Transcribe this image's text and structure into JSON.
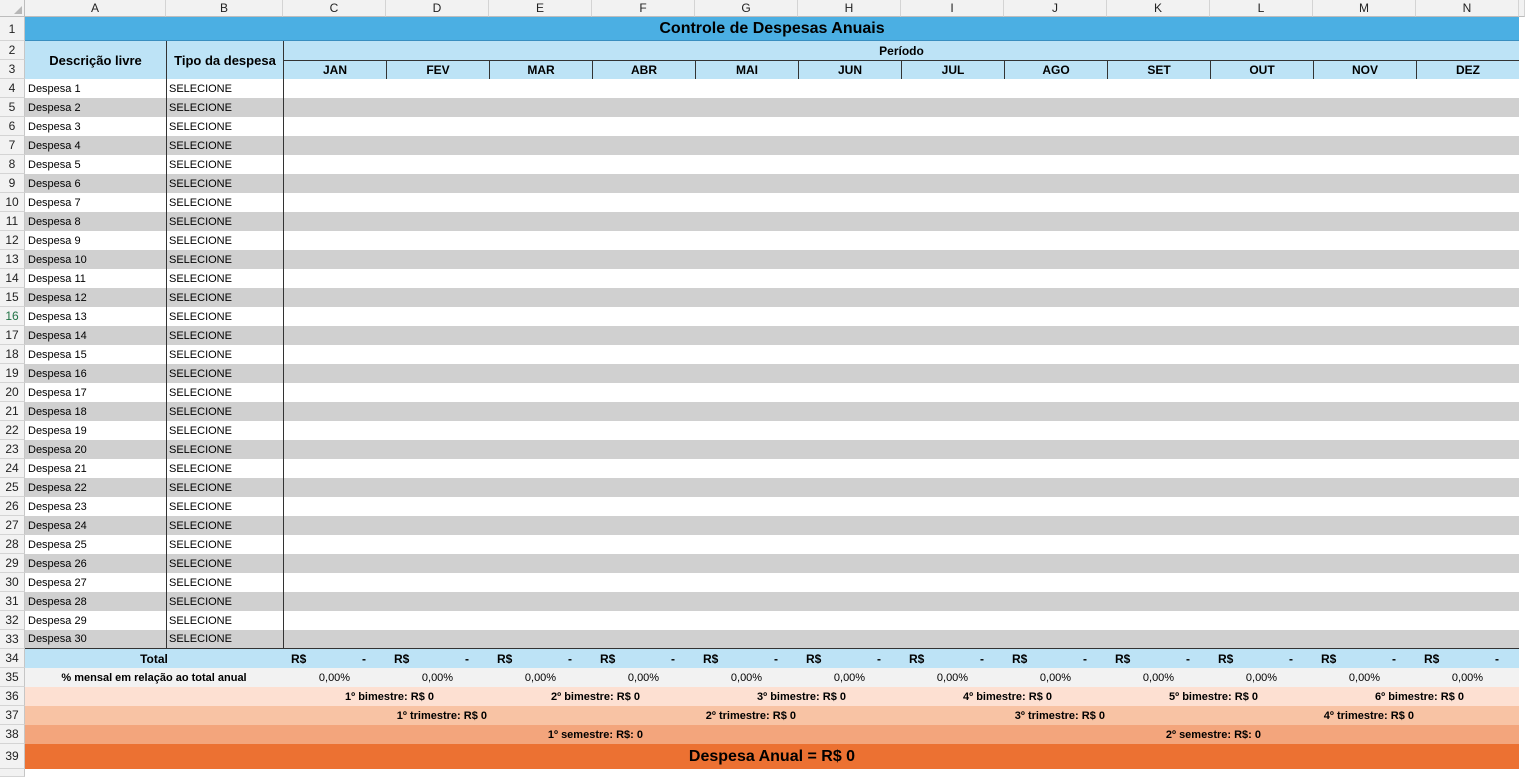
{
  "columns": [
    "A",
    "B",
    "C",
    "D",
    "E",
    "F",
    "G",
    "H",
    "I",
    "J",
    "K",
    "L",
    "M",
    "N"
  ],
  "title": "Controle de Despesas Anuais",
  "headers": {
    "descricao": "Descrição livre",
    "tipo": "Tipo da despesa",
    "periodo": "Período"
  },
  "months": [
    "JAN",
    "FEV",
    "MAR",
    "ABR",
    "MAI",
    "JUN",
    "JUL",
    "AGO",
    "SET",
    "OUT",
    "NOV",
    "DEZ"
  ],
  "expenses": [
    "Despesa 1",
    "Despesa 2",
    "Despesa 3",
    "Despesa 4",
    "Despesa 5",
    "Despesa 6",
    "Despesa 7",
    "Despesa 8",
    "Despesa 9",
    "Despesa 10",
    "Despesa 11",
    "Despesa 12",
    "Despesa 13",
    "Despesa 14",
    "Despesa 15",
    "Despesa 16",
    "Despesa 17",
    "Despesa 18",
    "Despesa 19",
    "Despesa 20",
    "Despesa 21",
    "Despesa 22",
    "Despesa 23",
    "Despesa 24",
    "Despesa 25",
    "Despesa 26",
    "Despesa 27",
    "Despesa 28",
    "Despesa 29",
    "Despesa 30"
  ],
  "tipo_value": "SELECIONE",
  "total": {
    "label": "Total",
    "currency": "R$",
    "dash": "-"
  },
  "pct": {
    "label": "% mensal em relação ao total anual",
    "value": "0,00%"
  },
  "bimestres": [
    "1º bimestre: R$ 0",
    "2º bimestre: R$ 0",
    "3º bimestre: R$ 0",
    "4º bimestre: R$ 0",
    "5º bimestre: R$ 0",
    "6º bimestre: R$ 0"
  ],
  "trimestres": [
    "1º trimestre: R$ 0",
    "2º trimestre: R$ 0",
    "3º trimestre: R$ 0",
    "4º trimestre: R$ 0"
  ],
  "semestres": [
    "1º semestre: R$: 0",
    "2º semestre: R$: 0"
  ],
  "anual": "Despesa Anual = R$ 0",
  "selected_row": "16",
  "colors": {
    "title": "#4bafe3",
    "header": "#bde3f6",
    "stripe": "#d0d0d0",
    "bimestre": "#fde0d2",
    "trimestre": "#f8c3a4",
    "semestre": "#f3a57c",
    "anual": "#ec7132"
  }
}
